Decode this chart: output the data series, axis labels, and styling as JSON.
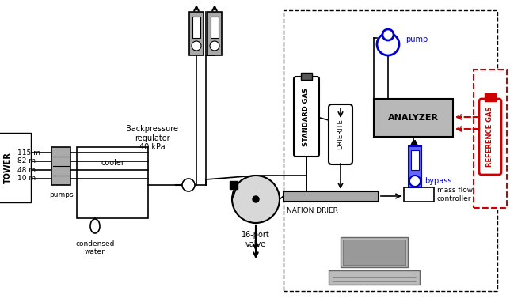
{
  "bg_color": "#ffffff",
  "black": "#000000",
  "gray": "#aaaaaa",
  "dark_gray": "#888888",
  "light_gray": "#d0d0d0",
  "blue": "#0000cc",
  "red": "#cc0000",
  "box_gray": "#aaaaaa",
  "analyzer_gray": "#b8b8b8",
  "tower_label": "TOWER",
  "pump_label": "pump",
  "bypass_label": "bypass",
  "analyzer_label": "ANALYZER",
  "nafion_label": "NAFION DRIER",
  "mass_flow_label": "mass flow\ncontroller",
  "standard_gas_label": "STANDARD GAS",
  "drierite_label": "DRIERITE",
  "reference_gas_label": "REFERENCE GAS",
  "valve_label": "16-port\nvalve",
  "cooler_label": "cooler",
  "pumps_label": "pumps",
  "condensed_water_label": "condensed\nwater",
  "backpressure_label": "Backpressure\nregulator\n40 kPa",
  "heights": [
    "115 m",
    "82 m",
    "48 m",
    "10 m"
  ]
}
